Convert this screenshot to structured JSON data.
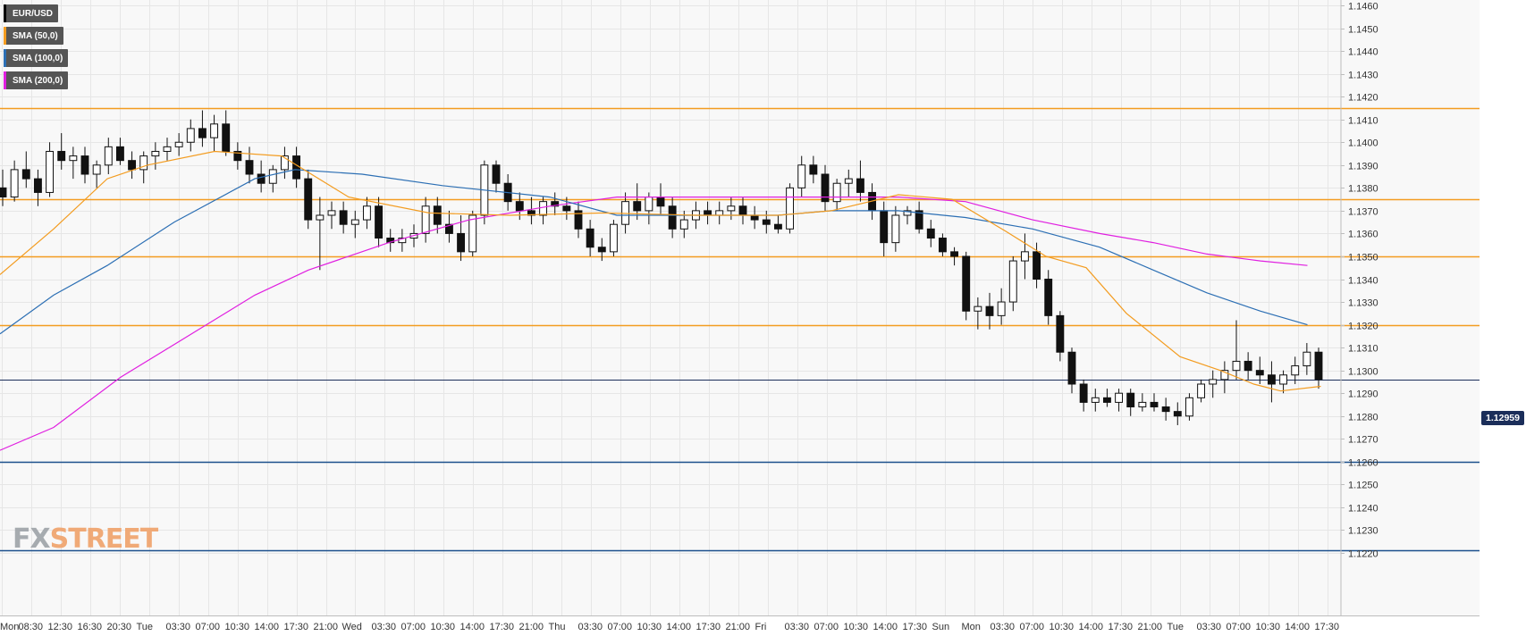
{
  "legend": {
    "symbol": {
      "label": "EUR/USD",
      "color": "#000000"
    },
    "sma50": {
      "label": "SMA (50,0)",
      "color": "#f39c20"
    },
    "sma100": {
      "label": "SMA (100,0)",
      "color": "#2c6fb4"
    },
    "sma200": {
      "label": "SMA (200,0)",
      "color": "#e01fe0"
    }
  },
  "watermark": {
    "fx": "FX",
    "street": "STREET"
  },
  "current_price_label": "1.12959",
  "chart_data": {
    "type": "candlestick",
    "symbol": "EUR/USD",
    "ylim": [
      1.122,
      1.146
    ],
    "y_ticks": [
      "1.1460",
      "1.1450",
      "1.1440",
      "1.1430",
      "1.1420",
      "1.1410",
      "1.1400",
      "1.1390",
      "1.1380",
      "1.1370",
      "1.1360",
      "1.1350",
      "1.1340",
      "1.1330",
      "1.1320",
      "1.1310",
      "1.1300",
      "1.1290",
      "1.1280",
      "1.1270",
      "1.1260",
      "1.1250",
      "1.1240",
      "1.1230",
      "1.1220"
    ],
    "x_ticks": [
      "Mon",
      "08:30",
      "12:30",
      "16:30",
      "20:30",
      "Tue",
      "03:30",
      "07:00",
      "10:30",
      "14:00",
      "17:30",
      "21:00",
      "Wed",
      "03:30",
      "07:00",
      "10:30",
      "14:00",
      "17:30",
      "21:00",
      "Thu",
      "03:30",
      "07:00",
      "10:30",
      "14:00",
      "17:30",
      "21:00",
      "Fri",
      "03:30",
      "07:00",
      "10:30",
      "14:00",
      "17:30",
      "Sun",
      "Mon",
      "03:30",
      "07:00",
      "10:30",
      "14:00",
      "17:30",
      "21:00",
      "Tue",
      "03:30",
      "07:00",
      "10:30",
      "14:00",
      "17:30"
    ],
    "horizontal_levels": [
      {
        "value": 1.1415,
        "color": "#f39c20"
      },
      {
        "value": 1.1375,
        "color": "#f39c20"
      },
      {
        "value": 1.135,
        "color": "#f39c20"
      },
      {
        "value": 1.132,
        "color": "#f39c20"
      },
      {
        "value": 1.126,
        "color": "#1b4f8c"
      },
      {
        "value": 1.1221,
        "color": "#1b4f8c"
      }
    ],
    "current_price": 1.12959,
    "grid": true,
    "legend_position": "top-left",
    "candles": [
      [
        1.138,
        1.1388,
        1.1372,
        1.1376
      ],
      [
        1.1376,
        1.1392,
        1.1374,
        1.1388
      ],
      [
        1.1388,
        1.1396,
        1.138,
        1.1384
      ],
      [
        1.1384,
        1.1388,
        1.1372,
        1.1378
      ],
      [
        1.1378,
        1.14,
        1.1376,
        1.1396
      ],
      [
        1.1396,
        1.1404,
        1.1388,
        1.1392
      ],
      [
        1.1392,
        1.1398,
        1.1384,
        1.1394
      ],
      [
        1.1394,
        1.1398,
        1.1382,
        1.1386
      ],
      [
        1.1386,
        1.1392,
        1.138,
        1.139
      ],
      [
        1.139,
        1.1402,
        1.1386,
        1.1398
      ],
      [
        1.1398,
        1.1402,
        1.139,
        1.1392
      ],
      [
        1.1392,
        1.1396,
        1.1384,
        1.1388
      ],
      [
        1.1388,
        1.1396,
        1.1382,
        1.1394
      ],
      [
        1.1394,
        1.14,
        1.1388,
        1.1396
      ],
      [
        1.1396,
        1.1402,
        1.1392,
        1.1398
      ],
      [
        1.1398,
        1.1404,
        1.1394,
        1.14
      ],
      [
        1.14,
        1.141,
        1.1396,
        1.1406
      ],
      [
        1.1406,
        1.1414,
        1.1398,
        1.1402
      ],
      [
        1.1402,
        1.1412,
        1.1396,
        1.1408
      ],
      [
        1.1408,
        1.1414,
        1.1394,
        1.1396
      ],
      [
        1.1396,
        1.14,
        1.1388,
        1.1392
      ],
      [
        1.1392,
        1.1398,
        1.1382,
        1.1386
      ],
      [
        1.1386,
        1.1392,
        1.1378,
        1.1382
      ],
      [
        1.1382,
        1.139,
        1.1378,
        1.1388
      ],
      [
        1.1388,
        1.1398,
        1.1384,
        1.1394
      ],
      [
        1.1394,
        1.1398,
        1.138,
        1.1384
      ],
      [
        1.1384,
        1.1388,
        1.1362,
        1.1366
      ],
      [
        1.1366,
        1.1376,
        1.1344,
        1.1368
      ],
      [
        1.1368,
        1.1374,
        1.1362,
        1.137
      ],
      [
        1.137,
        1.1374,
        1.136,
        1.1364
      ],
      [
        1.1364,
        1.137,
        1.1358,
        1.1366
      ],
      [
        1.1366,
        1.1376,
        1.1362,
        1.1372
      ],
      [
        1.1372,
        1.1376,
        1.1354,
        1.1358
      ],
      [
        1.1358,
        1.1362,
        1.1352,
        1.1356
      ],
      [
        1.1356,
        1.1362,
        1.1352,
        1.1358
      ],
      [
        1.1358,
        1.1364,
        1.1354,
        1.136
      ],
      [
        1.136,
        1.1376,
        1.1356,
        1.1372
      ],
      [
        1.1372,
        1.1376,
        1.136,
        1.1364
      ],
      [
        1.1364,
        1.137,
        1.1356,
        1.136
      ],
      [
        1.136,
        1.1368,
        1.1348,
        1.1352
      ],
      [
        1.1352,
        1.137,
        1.135,
        1.1368
      ],
      [
        1.1368,
        1.1392,
        1.1364,
        1.139
      ],
      [
        1.139,
        1.1392,
        1.1378,
        1.1382
      ],
      [
        1.1382,
        1.1386,
        1.137,
        1.1374
      ],
      [
        1.1374,
        1.1378,
        1.1366,
        1.137
      ],
      [
        1.137,
        1.1376,
        1.1364,
        1.1368
      ],
      [
        1.1368,
        1.1376,
        1.1364,
        1.1374
      ],
      [
        1.1374,
        1.1378,
        1.1368,
        1.1372
      ],
      [
        1.1372,
        1.1376,
        1.1366,
        1.137
      ],
      [
        1.137,
        1.1374,
        1.1358,
        1.1362
      ],
      [
        1.1362,
        1.1366,
        1.135,
        1.1354
      ],
      [
        1.1354,
        1.1358,
        1.1348,
        1.1352
      ],
      [
        1.1352,
        1.1366,
        1.135,
        1.1364
      ],
      [
        1.1364,
        1.1378,
        1.136,
        1.1374
      ],
      [
        1.1374,
        1.1382,
        1.1366,
        1.137
      ],
      [
        1.137,
        1.1378,
        1.1364,
        1.1376
      ],
      [
        1.1376,
        1.1382,
        1.1368,
        1.1372
      ],
      [
        1.1372,
        1.1376,
        1.1358,
        1.1362
      ],
      [
        1.1362,
        1.137,
        1.1358,
        1.1366
      ],
      [
        1.1366,
        1.1374,
        1.1362,
        1.137
      ],
      [
        1.137,
        1.1374,
        1.1364,
        1.1368
      ],
      [
        1.1368,
        1.1374,
        1.1364,
        1.137
      ],
      [
        1.137,
        1.1376,
        1.1366,
        1.1372
      ],
      [
        1.1372,
        1.1376,
        1.1364,
        1.1368
      ],
      [
        1.1368,
        1.1372,
        1.1362,
        1.1366
      ],
      [
        1.1366,
        1.137,
        1.136,
        1.1364
      ],
      [
        1.1364,
        1.1368,
        1.136,
        1.1362
      ],
      [
        1.1362,
        1.1382,
        1.136,
        1.138
      ],
      [
        1.138,
        1.1394,
        1.1376,
        1.139
      ],
      [
        1.139,
        1.1394,
        1.1382,
        1.1386
      ],
      [
        1.1386,
        1.139,
        1.137,
        1.1374
      ],
      [
        1.1374,
        1.1384,
        1.137,
        1.1382
      ],
      [
        1.1382,
        1.1388,
        1.1376,
        1.1384
      ],
      [
        1.1384,
        1.1392,
        1.1374,
        1.1378
      ],
      [
        1.1378,
        1.1382,
        1.1366,
        1.137
      ],
      [
        1.137,
        1.1374,
        1.135,
        1.1356
      ],
      [
        1.1356,
        1.1372,
        1.1352,
        1.1368
      ],
      [
        1.1368,
        1.1372,
        1.1364,
        1.137
      ],
      [
        1.137,
        1.1374,
        1.136,
        1.1362
      ],
      [
        1.1362,
        1.1366,
        1.1354,
        1.1358
      ],
      [
        1.1358,
        1.136,
        1.135,
        1.1352
      ],
      [
        1.1352,
        1.1354,
        1.1346,
        1.135
      ],
      [
        1.135,
        1.1352,
        1.1322,
        1.1326
      ],
      [
        1.1326,
        1.1332,
        1.1318,
        1.1328
      ],
      [
        1.1328,
        1.1334,
        1.1318,
        1.1324
      ],
      [
        1.1324,
        1.1336,
        1.132,
        1.133
      ],
      [
        1.133,
        1.135,
        1.1326,
        1.1348
      ],
      [
        1.1348,
        1.136,
        1.134,
        1.1352
      ],
      [
        1.1352,
        1.1356,
        1.1336,
        1.134
      ],
      [
        1.134,
        1.1344,
        1.132,
        1.1324
      ],
      [
        1.1324,
        1.1326,
        1.1304,
        1.1308
      ],
      [
        1.1308,
        1.131,
        1.129,
        1.1294
      ],
      [
        1.1294,
        1.1296,
        1.1282,
        1.1286
      ],
      [
        1.1286,
        1.1292,
        1.1282,
        1.1288
      ],
      [
        1.1288,
        1.1292,
        1.1284,
        1.1286
      ],
      [
        1.1286,
        1.1292,
        1.1282,
        1.129
      ],
      [
        1.129,
        1.1292,
        1.128,
        1.1284
      ],
      [
        1.1284,
        1.129,
        1.1282,
        1.1286
      ],
      [
        1.1286,
        1.129,
        1.1282,
        1.1284
      ],
      [
        1.1284,
        1.1288,
        1.1278,
        1.1282
      ],
      [
        1.1282,
        1.1286,
        1.1276,
        1.128
      ],
      [
        1.128,
        1.129,
        1.1278,
        1.1288
      ],
      [
        1.1288,
        1.1296,
        1.1286,
        1.1294
      ],
      [
        1.1294,
        1.13,
        1.1288,
        1.1296
      ],
      [
        1.1296,
        1.1304,
        1.129,
        1.13
      ],
      [
        1.13,
        1.1322,
        1.1296,
        1.1304
      ],
      [
        1.1304,
        1.1308,
        1.1296,
        1.13
      ],
      [
        1.13,
        1.1306,
        1.1294,
        1.1298
      ],
      [
        1.1298,
        1.1304,
        1.1286,
        1.1294
      ],
      [
        1.1294,
        1.13,
        1.129,
        1.1298
      ],
      [
        1.1298,
        1.1306,
        1.1294,
        1.1302
      ],
      [
        1.1302,
        1.1312,
        1.1298,
        1.1308
      ],
      [
        1.1308,
        1.131,
        1.1292,
        1.1296
      ]
    ],
    "sma50": [
      [
        0,
        1.1342
      ],
      [
        0.04,
        1.1362
      ],
      [
        0.08,
        1.1384
      ],
      [
        0.11,
        1.139
      ],
      [
        0.16,
        1.1396
      ],
      [
        0.21,
        1.1394
      ],
      [
        0.26,
        1.1376
      ],
      [
        0.32,
        1.1369
      ],
      [
        0.38,
        1.1368
      ],
      [
        0.45,
        1.1369
      ],
      [
        0.52,
        1.1368
      ],
      [
        0.58,
        1.1368
      ],
      [
        0.62,
        1.137
      ],
      [
        0.67,
        1.1377
      ],
      [
        0.71,
        1.1375
      ],
      [
        0.75,
        1.1361
      ],
      [
        0.78,
        1.135
      ],
      [
        0.81,
        1.1345
      ],
      [
        0.84,
        1.1325
      ],
      [
        0.88,
        1.1306
      ],
      [
        0.91,
        1.13
      ],
      [
        0.935,
        1.1294
      ],
      [
        0.955,
        1.1291
      ],
      [
        0.985,
        1.1293
      ]
    ],
    "sma100": [
      [
        0,
        1.1316
      ],
      [
        0.04,
        1.1333
      ],
      [
        0.08,
        1.1346
      ],
      [
        0.13,
        1.1365
      ],
      [
        0.19,
        1.1384
      ],
      [
        0.22,
        1.1388
      ],
      [
        0.27,
        1.1386
      ],
      [
        0.33,
        1.1381
      ],
      [
        0.41,
        1.1376
      ],
      [
        0.46,
        1.1368
      ],
      [
        0.52,
        1.1368
      ],
      [
        0.58,
        1.1368
      ],
      [
        0.62,
        1.137
      ],
      [
        0.67,
        1.137
      ],
      [
        0.72,
        1.1367
      ],
      [
        0.77,
        1.1362
      ],
      [
        0.82,
        1.1354
      ],
      [
        0.86,
        1.1344
      ],
      [
        0.9,
        1.1334
      ],
      [
        0.94,
        1.1326
      ],
      [
        0.975,
        1.132
      ]
    ],
    "sma200": [
      [
        0,
        1.1265
      ],
      [
        0.04,
        1.1275
      ],
      [
        0.09,
        1.1297
      ],
      [
        0.14,
        1.1315
      ],
      [
        0.19,
        1.1333
      ],
      [
        0.23,
        1.1344
      ],
      [
        0.29,
        1.1356
      ],
      [
        0.35,
        1.1366
      ],
      [
        0.41,
        1.1372
      ],
      [
        0.46,
        1.1376
      ],
      [
        0.53,
        1.1376
      ],
      [
        0.58,
        1.1376
      ],
      [
        0.62,
        1.1376
      ],
      [
        0.67,
        1.1376
      ],
      [
        0.72,
        1.1374
      ],
      [
        0.77,
        1.1366
      ],
      [
        0.82,
        1.136
      ],
      [
        0.86,
        1.1356
      ],
      [
        0.9,
        1.1351
      ],
      [
        0.94,
        1.1348
      ],
      [
        0.975,
        1.1346
      ]
    ]
  }
}
